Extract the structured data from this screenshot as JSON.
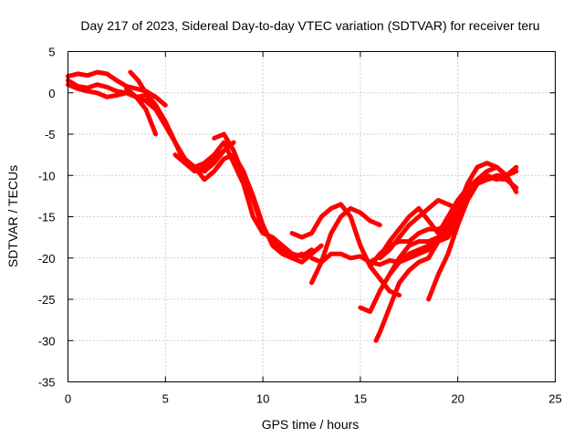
{
  "chart_data": {
    "type": "line",
    "title": "Day 217 of 2023, Sidereal Day-to-day VTEC variation (SDTVAR) for receiver teru",
    "xlabel": "GPS time / hours",
    "ylabel": "SDTVAR / TECUs",
    "xlim": [
      0,
      25
    ],
    "ylim": [
      -35,
      5
    ],
    "xticks": [
      0,
      5,
      10,
      15,
      20,
      25
    ],
    "yticks": [
      5,
      0,
      -5,
      -10,
      -15,
      -20,
      -25,
      -30,
      -35
    ],
    "grid": true,
    "color": "#ff0000",
    "series": [
      {
        "x": [
          0,
          0.5,
          1,
          1.5,
          2,
          2.5,
          3,
          3.5,
          4,
          4.5,
          5
        ],
        "y": [
          2,
          2.3,
          2.1,
          2.5,
          2.3,
          1.5,
          0.8,
          0.5,
          0.2,
          -0.5,
          -1.5
        ]
      },
      {
        "x": [
          0,
          0.5,
          1,
          1.5,
          2,
          2.5,
          3,
          3.5,
          4,
          4.5
        ],
        "y": [
          1.5,
          0.8,
          0.6,
          1,
          0.7,
          0.2,
          0,
          -0.5,
          -2,
          -5
        ]
      },
      {
        "x": [
          0,
          0.5,
          1,
          1.5,
          2,
          2.5,
          3,
          3.5,
          4,
          4.5,
          5,
          5.5,
          6,
          6.5,
          7,
          7.5,
          8
        ],
        "y": [
          1,
          0.5,
          0.2,
          0,
          -0.5,
          -0.3,
          0,
          -0.5,
          -1,
          -2,
          -4,
          -6,
          -8,
          -9,
          -9.5,
          -8.5,
          -7
        ]
      },
      {
        "x": [
          3.2,
          3.6,
          4,
          4.5,
          5,
          5.5,
          6,
          6.5,
          7,
          7.5,
          8,
          8.5
        ],
        "y": [
          2.5,
          1.5,
          0,
          -1.5,
          -3.5,
          -6,
          -8.5,
          -9.5,
          -9,
          -8,
          -7,
          -6
        ]
      },
      {
        "x": [
          3,
          3.5,
          4,
          4.5,
          5,
          5.5,
          6,
          6.5,
          7,
          7.5,
          8,
          8.5,
          9,
          9.5,
          10,
          10.5,
          11,
          11.5,
          12
        ],
        "y": [
          0.5,
          -0.5,
          -0.3,
          -1.5,
          -3.5,
          -6,
          -8.5,
          -9,
          -10.5,
          -9.5,
          -8,
          -7.5,
          -9.5,
          -12.5,
          -16,
          -18.5,
          -19.5,
          -20,
          -19.5
        ]
      },
      {
        "x": [
          5.5,
          6,
          6.5,
          7,
          7.5,
          8,
          8.5,
          9,
          9.5,
          10,
          10.5,
          11,
          11.5,
          12,
          12.5
        ],
        "y": [
          -7.5,
          -8.5,
          -9,
          -8.5,
          -7.5,
          -6,
          -8.5,
          -11,
          -15,
          -17,
          -17.5,
          -18.5,
          -19.5,
          -19.8,
          -19
        ]
      },
      {
        "x": [
          7.5,
          8,
          8.5,
          9,
          9.5,
          10,
          10.5,
          11,
          11.5,
          12,
          12.5,
          13
        ],
        "y": [
          -5.5,
          -5,
          -7,
          -10,
          -13,
          -16.5,
          -18,
          -19,
          -20,
          -20.5,
          -19.5,
          -18.5
        ]
      },
      {
        "x": [
          11.5,
          12,
          12.5,
          13,
          13.5,
          14,
          14.5,
          15,
          15.5,
          16,
          16.5,
          17
        ],
        "y": [
          -17,
          -17.5,
          -17,
          -15,
          -14,
          -13.5,
          -15,
          -18.5,
          -21,
          -22.5,
          -24,
          -24.5
        ]
      },
      {
        "x": [
          12.5,
          13,
          13.5,
          14,
          14.5,
          15,
          15.5,
          16
        ],
        "y": [
          -23,
          -20.5,
          -17,
          -15,
          -14,
          -14.5,
          -15.5,
          -16
        ]
      },
      {
        "x": [
          12.5,
          13,
          13.5,
          14,
          14.5,
          15,
          15.5,
          16,
          16.5,
          17,
          17.5,
          18,
          18.5,
          19,
          19.5,
          20,
          20.5,
          21,
          21.5,
          22,
          22.5,
          23
        ],
        "y": [
          -20,
          -20.5,
          -19.5,
          -19.5,
          -20,
          -19.8,
          -20.5,
          -20.8,
          -20.3,
          -20.5,
          -20,
          -19.5,
          -19,
          -18,
          -16.5,
          -14,
          -12.5,
          -11,
          -10.5,
          -10.2,
          -10,
          -9
        ]
      },
      {
        "x": [
          15,
          15.5,
          16,
          16.5,
          17,
          17.5,
          18,
          18.5,
          19,
          19.5,
          20,
          20.5,
          21,
          21.5,
          22,
          22.5,
          23
        ],
        "y": [
          -26,
          -26.5,
          -24,
          -22,
          -20,
          -18.5,
          -18,
          -18,
          -17.5,
          -16,
          -14,
          -12,
          -11,
          -10.5,
          -10,
          -10,
          -9.5
        ]
      },
      {
        "x": [
          15.5,
          16,
          16.5,
          17,
          17.5,
          18,
          18.5,
          19,
          19.5,
          20,
          20.5,
          21,
          21.5,
          22,
          22.5,
          23
        ],
        "y": [
          -21,
          -19.5,
          -18.5,
          -18,
          -18,
          -17,
          -16.5,
          -16.5,
          -16,
          -14.5,
          -12,
          -10.5,
          -10.2,
          -10.4,
          -10.5,
          -11.5
        ]
      },
      {
        "x": [
          15.8,
          16,
          16.5,
          17,
          17.5,
          18,
          18.5,
          19,
          19.5,
          20,
          20.5,
          21,
          21.5,
          22,
          22.5,
          23
        ],
        "y": [
          -30,
          -29,
          -26,
          -23,
          -21.5,
          -20.5,
          -20,
          -18,
          -17,
          -15,
          -12.5,
          -10.5,
          -9.5,
          -9,
          -10,
          -12
        ]
      },
      {
        "x": [
          16,
          16.5,
          17,
          17.5,
          18,
          18.5,
          19,
          19.5,
          20,
          20.5,
          21,
          21.5,
          22
        ],
        "y": [
          -20,
          -19,
          -17.5,
          -16,
          -15,
          -14,
          -13,
          -13.5,
          -14,
          -11,
          -9,
          -8.5,
          -9
        ]
      },
      {
        "x": [
          15.5,
          16,
          16.5,
          17,
          17.5,
          18,
          18.5,
          19,
          19.5,
          20,
          20.5,
          21
        ],
        "y": [
          -20.5,
          -19.8,
          -18,
          -16.5,
          -15,
          -14,
          -15.5,
          -17,
          -15,
          -13,
          -11.5,
          -10.5
        ]
      },
      {
        "x": [
          16.5,
          17,
          17.5,
          18,
          18.5,
          19,
          19.5,
          20,
          20.5,
          21,
          21.5,
          22
        ],
        "y": [
          -22,
          -20.5,
          -19.5,
          -19,
          -18.5,
          -18,
          -17.5,
          -15.5,
          -13,
          -11,
          -10,
          -10.5
        ]
      },
      {
        "x": [
          18.5,
          19,
          19.5,
          20,
          20.5,
          21,
          21.5
        ],
        "y": [
          -25,
          -22,
          -19.5,
          -16,
          -13,
          -11,
          -10
        ]
      }
    ]
  }
}
